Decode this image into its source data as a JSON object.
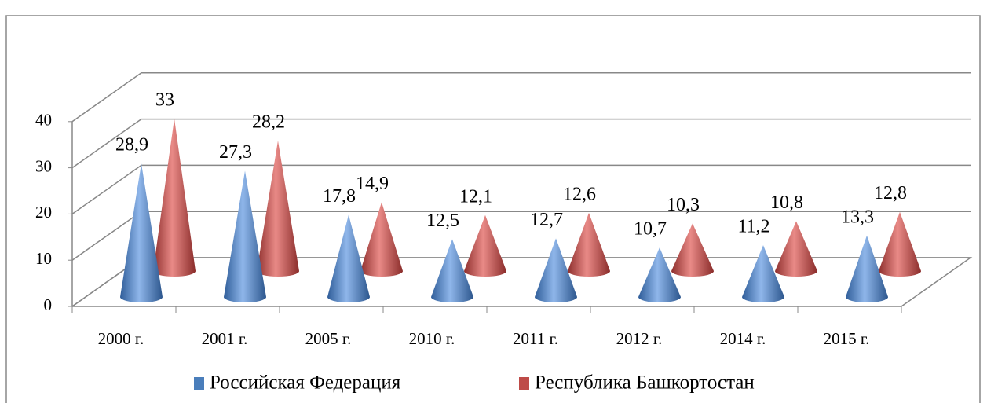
{
  "chart_data": {
    "type": "bar",
    "categories": [
      "2000 г.",
      "2001 г.",
      "2005 г.",
      "2010 г.",
      "2011 г.",
      "2012 г.",
      "2014 г.",
      "2015 г."
    ],
    "series": [
      {
        "name": "Российская Федерация",
        "color": "#4a7ebb",
        "values": [
          28.9,
          27.3,
          17.8,
          12.5,
          12.7,
          10.7,
          11.2,
          13.3
        ],
        "value_labels": [
          "28,9",
          "27,3",
          "17,8",
          "12,5",
          "12,7",
          "10,7",
          "11,2",
          "13,3"
        ]
      },
      {
        "name": "Республика Башкортостан",
        "color": "#be4b48",
        "values": [
          33,
          28.2,
          14.9,
          12.1,
          12.6,
          10.3,
          10.8,
          12.8
        ],
        "value_labels": [
          "33",
          "28,2",
          "14,9",
          "12,1",
          "12,6",
          "10,3",
          "10,8",
          "12,8"
        ]
      }
    ],
    "ylim": [
      0,
      40
    ],
    "yticks": [
      0,
      10,
      20,
      30,
      40
    ],
    "grid": true
  }
}
